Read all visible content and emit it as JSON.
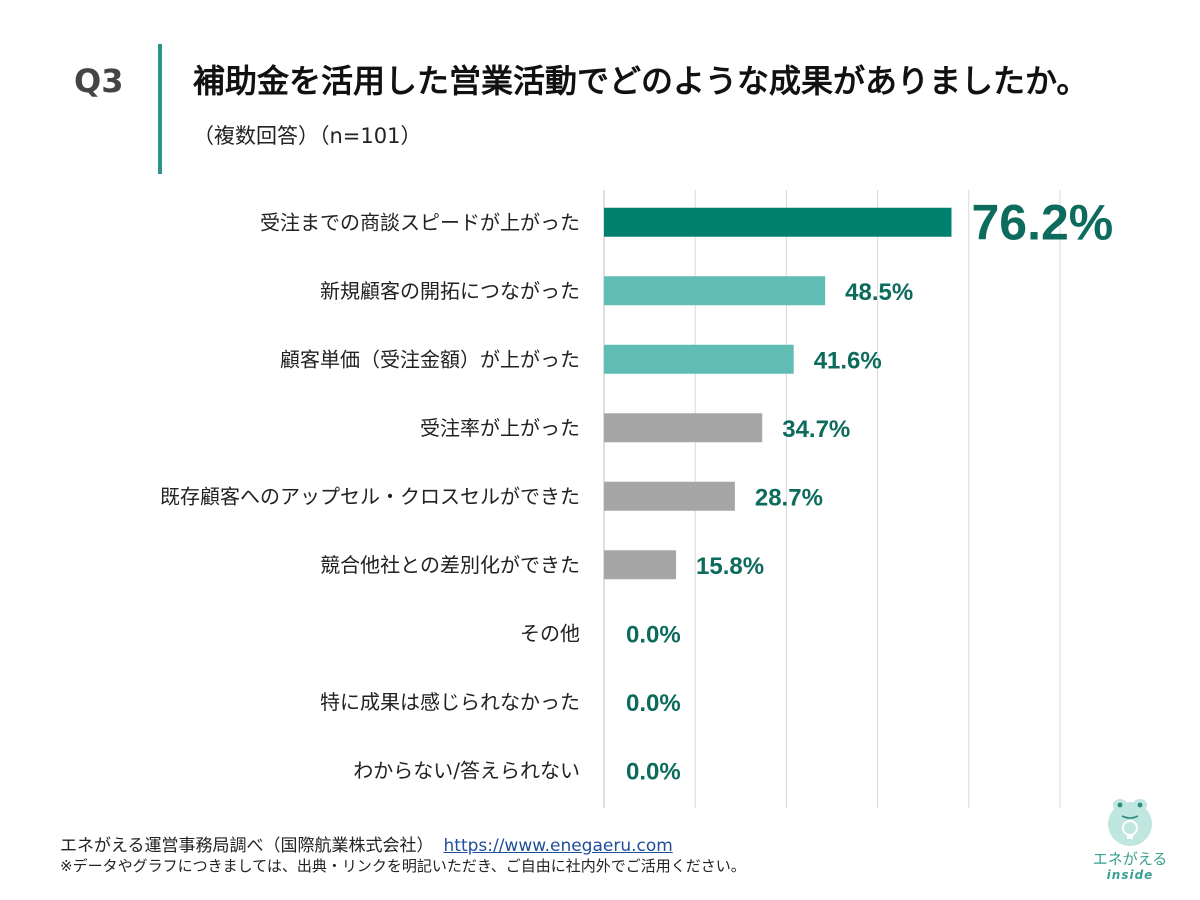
{
  "header": {
    "q_label": "Q3",
    "question": "補助金を活用した営業活動でどのような成果がありましたか。",
    "subtitle": "（複数回答）（n=101）"
  },
  "chart_data": {
    "type": "bar",
    "orientation": "horizontal",
    "categories": [
      "受注までの商談スピードが上がった",
      "新規顧客の開拓につながった",
      "顧客単価（受注金額）が上がった",
      "受注率が上がった",
      "既存顧客へのアップセル・クロスセルができた",
      "競合他社との差別化ができた",
      "その他",
      "特に成果は感じられなかった",
      "わからない/答えられない"
    ],
    "values": [
      76.2,
      48.5,
      41.6,
      34.7,
      28.7,
      15.8,
      0.0,
      0.0,
      0.0
    ],
    "labels": [
      "76.2%",
      "48.5%",
      "41.6%",
      "34.7%",
      "28.7%",
      "15.8%",
      "0.0%",
      "0.0%",
      "0.0%"
    ],
    "bar_colors": [
      "#00806e",
      "#5fbdb3",
      "#5fbdb3",
      "#a6a6a6",
      "#a6a6a6",
      "#a6a6a6",
      "#a6a6a6",
      "#a6a6a6",
      "#a6a6a6"
    ],
    "label_color": "#0c6b5c",
    "gridline_color": "#d9d9d9",
    "xlim": [
      0,
      100
    ],
    "grid": true,
    "title": "",
    "xlabel": "",
    "ylabel": ""
  },
  "footer": {
    "source": "エネがえる運営事務局調べ（国際航業株式会社）",
    "url": "https://www.enegaeru.com",
    "note": "※データやグラフにつきましては、出典・リンクを明記いただき、ご自由に社内外でご活用ください。"
  },
  "logo": {
    "name": "エネがえる",
    "sub": "inside",
    "accent_color": "#3aa08f"
  }
}
